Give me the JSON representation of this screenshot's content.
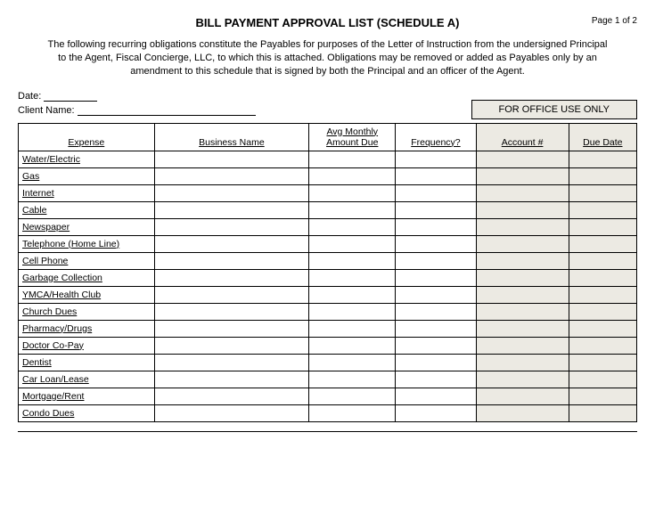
{
  "header": {
    "title": "BILL PAYMENT APPROVAL LIST (SCHEDULE A)",
    "page_label": "Page 1 of 2",
    "instructions": "The following recurring obligations constitute the Payables for purposes of the Letter of Instruction from the undersigned Principal to the Agent, Fiscal Concierge, LLC, to which this is attached. Obligations may be removed or added as Payables only by an amendment to this schedule that is signed by both the Principal and an officer of the Agent."
  },
  "meta": {
    "date_label": "Date:",
    "client_name_label": "Client Name:",
    "office_use_label": "FOR OFFICE USE ONLY"
  },
  "table": {
    "columns": [
      {
        "label": "Expense",
        "shaded": false
      },
      {
        "label": "Business Name",
        "shaded": false
      },
      {
        "label": "Avg Monthly Amount Due",
        "shaded": false
      },
      {
        "label": "Frequency?",
        "shaded": false
      },
      {
        "label": "Account #",
        "shaded": true
      },
      {
        "label": "Due Date",
        "shaded": true
      }
    ],
    "rows": [
      {
        "expense": "Water/Electric"
      },
      {
        "expense": "Gas"
      },
      {
        "expense": "Internet"
      },
      {
        "expense": "Cable"
      },
      {
        "expense": "Newspaper"
      },
      {
        "expense": "Telephone (Home Line)"
      },
      {
        "expense": "Cell Phone"
      },
      {
        "expense": "Garbage Collection"
      },
      {
        "expense": "YMCA/Health Club"
      },
      {
        "expense": "Church Dues"
      },
      {
        "expense": "Pharmacy/Drugs"
      },
      {
        "expense": "Doctor Co-Pay"
      },
      {
        "expense": "Dentist"
      },
      {
        "expense": "Car Loan/Lease"
      },
      {
        "expense": "Mortgage/Rent"
      },
      {
        "expense": "Condo Dues"
      }
    ]
  },
  "styling": {
    "shaded_bg": "#eceae3",
    "border_color": "#000000",
    "font_family": "Arial",
    "title_fontsize": 13,
    "body_fontsize": 11
  }
}
